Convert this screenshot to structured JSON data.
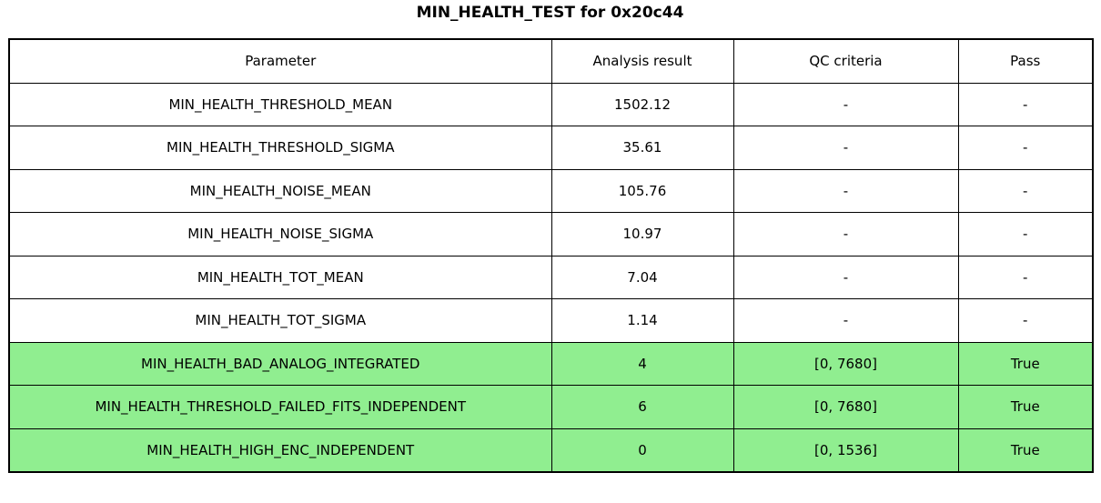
{
  "title": "MIN_HEALTH_TEST for 0x20c44",
  "colors": {
    "pass_highlight_green": "#90ee90",
    "border": "#000000",
    "text": "#000000",
    "background": "#ffffff"
  },
  "chart_data": {
    "type": "table",
    "title": "MIN_HEALTH_TEST for 0x20c44",
    "columns": [
      "Parameter",
      "Analysis result",
      "QC criteria",
      "Pass"
    ],
    "rows": [
      {
        "cells": [
          "MIN_HEALTH_THRESHOLD_MEAN",
          "1502.12",
          "-",
          "-"
        ],
        "highlight": false
      },
      {
        "cells": [
          "MIN_HEALTH_THRESHOLD_SIGMA",
          "35.61",
          "-",
          "-"
        ],
        "highlight": false
      },
      {
        "cells": [
          "MIN_HEALTH_NOISE_MEAN",
          "105.76",
          "-",
          "-"
        ],
        "highlight": false
      },
      {
        "cells": [
          "MIN_HEALTH_NOISE_SIGMA",
          "10.97",
          "-",
          "-"
        ],
        "highlight": false
      },
      {
        "cells": [
          "MIN_HEALTH_TOT_MEAN",
          "7.04",
          "-",
          "-"
        ],
        "highlight": false
      },
      {
        "cells": [
          "MIN_HEALTH_TOT_SIGMA",
          "1.14",
          "-",
          "-"
        ],
        "highlight": false
      },
      {
        "cells": [
          "MIN_HEALTH_BAD_ANALOG_INTEGRATED",
          "4",
          "[0, 7680]",
          "True"
        ],
        "highlight": true
      },
      {
        "cells": [
          "MIN_HEALTH_THRESHOLD_FAILED_FITS_INDEPENDENT",
          "6",
          "[0, 7680]",
          "True"
        ],
        "highlight": true
      },
      {
        "cells": [
          "MIN_HEALTH_HIGH_ENC_INDEPENDENT",
          "0",
          "[0, 1536]",
          "True"
        ],
        "highlight": true
      }
    ]
  }
}
